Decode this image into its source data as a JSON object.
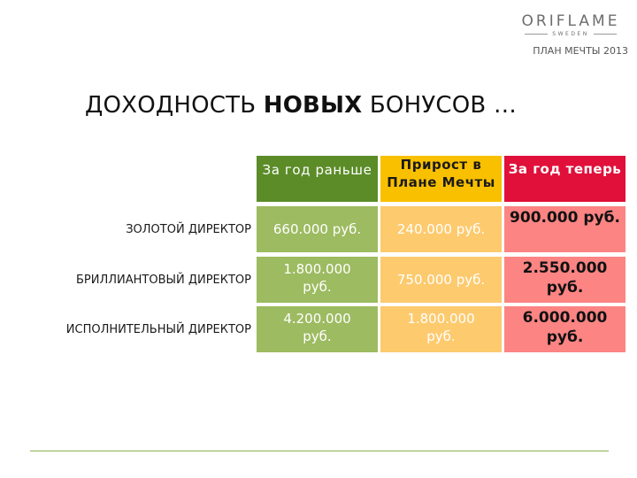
{
  "logo": {
    "brand": "ORIFLAME",
    "sub": "SWEDEN"
  },
  "plan_label": "ПЛАН МЕЧТЫ 2013",
  "title": {
    "prefix": "ДОХОДНОСТЬ",
    "bold": "НОВЫХ",
    "suffix": "БОНУСОВ …"
  },
  "table": {
    "headers": {
      "prev": "За год раньше",
      "growth": "Прирост в Плане Мечты",
      "now": "За год теперь"
    },
    "rows": [
      {
        "label": "ЗОЛОТОЙ ДИРЕКТОР",
        "prev": "660.000 руб.",
        "growth": "240.000 руб.",
        "now": "900.000 руб."
      },
      {
        "label": "БРИЛЛИАНТОВЫЙ ДИРЕКТОР",
        "prev": "1.800.000 руб.",
        "growth": "750.000 руб.",
        "now": "2.550.000 руб."
      },
      {
        "label": "ИСПОЛНИТЕЛЬНЫЙ ДИРЕКТОР",
        "prev": "4.200.000 руб.",
        "growth": "1.800.000 руб.",
        "now": "6.000.000 руб."
      }
    ]
  },
  "colors": {
    "header_prev": "#5b8c28",
    "header_growth": "#f9c000",
    "header_now": "#e0103b",
    "cell_prev": "#9dbb61",
    "cell_growth": "#fdca6e",
    "cell_now": "#fc8483"
  }
}
